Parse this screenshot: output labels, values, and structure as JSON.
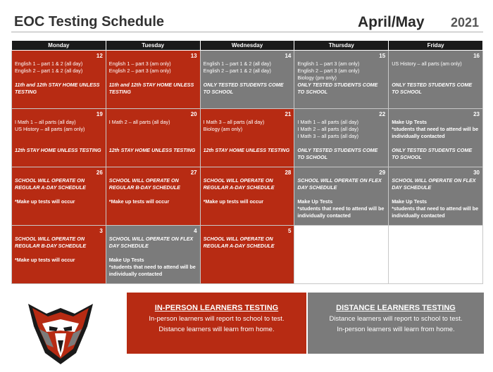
{
  "header": {
    "title": "EOC Testing Schedule",
    "month": "April/May",
    "year": "2021"
  },
  "days": [
    "Monday",
    "Tuesday",
    "Wednesday",
    "Thursday",
    "Friday"
  ],
  "weeks": [
    [
      {
        "num": "12",
        "color": "red",
        "lines": [
          {
            "t": "English 1 – part 1 & 2 (all day)"
          },
          {
            "t": "English 2 – part 1 & 2 (all day)"
          },
          {
            "gap": true
          },
          {
            "t": "11th and 12th STAY HOME UNLESS TESTING",
            "em": true
          }
        ]
      },
      {
        "num": "13",
        "color": "red",
        "lines": [
          {
            "t": "English 1 – part 3 (am only)"
          },
          {
            "t": "English 2 – part 3 (am only)"
          },
          {
            "gap": true
          },
          {
            "t": "11th and 12th STAY HOME UNLESS TESTING",
            "em": true
          }
        ]
      },
      {
        "num": "14",
        "color": "gray",
        "lines": [
          {
            "t": "English 1 – part 1 & 2 (all day)"
          },
          {
            "t": "English 2 – part 1 & 2 (all day)"
          },
          {
            "gap": true
          },
          {
            "t": "ONLY TESTED STUDENTS COME TO SCHOOL",
            "em": true
          }
        ]
      },
      {
        "num": "15",
        "color": "gray",
        "lines": [
          {
            "t": "English 1 – part 3 (am only)"
          },
          {
            "t": "English 2 – part 3 (am only)"
          },
          {
            "t": "Biology (pm only)"
          },
          {
            "t": "ONLY TESTED STUDENTS COME TO SCHOOL",
            "em": true
          }
        ]
      },
      {
        "num": "16",
        "color": "gray",
        "lines": [
          {
            "t": "US History – all parts (am only)"
          },
          {
            "gap": true
          },
          {
            "gap": true
          },
          {
            "t": "ONLY TESTED STUDENTS COME TO SCHOOL",
            "em": true
          }
        ]
      }
    ],
    [
      {
        "num": "19",
        "color": "red",
        "lines": [
          {
            "t": "I Math 1 – all parts (all day)"
          },
          {
            "t": "US History – all parts (am only)"
          },
          {
            "gap": true
          },
          {
            "gap": true
          },
          {
            "t": "12th STAY HOME UNLESS TESTING",
            "em": true
          }
        ]
      },
      {
        "num": "20",
        "color": "red",
        "lines": [
          {
            "t": "I Math 2 – all parts (all day)"
          },
          {
            "gap": true
          },
          {
            "gap": true
          },
          {
            "gap": true
          },
          {
            "t": "12th STAY HOME UNLESS TESTING",
            "em": true
          }
        ]
      },
      {
        "num": "21",
        "color": "red",
        "lines": [
          {
            "t": "I Math 3 – all parts (all day)"
          },
          {
            "t": "Biology (am only)"
          },
          {
            "gap": true
          },
          {
            "gap": true
          },
          {
            "t": "12th STAY HOME UNLESS TESTING",
            "em": true
          }
        ]
      },
      {
        "num": "22",
        "color": "gray",
        "lines": [
          {
            "t": "I Math 1 – all parts (all day)"
          },
          {
            "t": "I Math 2 – all parts (all day)"
          },
          {
            "t": "I Math 3 – all parts (all day)"
          },
          {
            "gap": true
          },
          {
            "t": "ONLY TESTED STUDENTS COME TO SCHOOL",
            "em": true
          }
        ]
      },
      {
        "num": "23",
        "color": "gray",
        "lines": [
          {
            "t": "Make Up Tests",
            "hd": true
          },
          {
            "t": "*students that need to attend will be individually contacted",
            "note": true
          },
          {
            "gap": true
          },
          {
            "t": "ONLY TESTED STUDENTS COME TO SCHOOL",
            "em": true
          }
        ]
      }
    ],
    [
      {
        "num": "26",
        "color": "red",
        "lines": [
          {
            "t": "SCHOOL WILL OPERATE ON REGULAR A-DAY SCHEDULE",
            "em": true
          },
          {
            "gap": true
          },
          {
            "t": "*Make up tests will occur",
            "hd": true
          }
        ]
      },
      {
        "num": "27",
        "color": "red",
        "lines": [
          {
            "t": "SCHOOL WILL OPERATE ON REGULAR B-DAY SCHEDULE",
            "em": true
          },
          {
            "gap": true
          },
          {
            "t": "*Make up tests will occur",
            "hd": true
          }
        ]
      },
      {
        "num": "28",
        "color": "red",
        "lines": [
          {
            "t": "SCHOOL WILL OPERATE ON REGULAR A-DAY SCHEDULE",
            "em": true
          },
          {
            "gap": true
          },
          {
            "t": "*Make up tests will occur",
            "hd": true
          }
        ]
      },
      {
        "num": "29",
        "color": "gray",
        "lines": [
          {
            "t": "SCHOOL WILL OPERATE ON FLEX DAY SCHEDULE",
            "em": true
          },
          {
            "gap": true
          },
          {
            "t": "Make Up Tests",
            "hd": true
          },
          {
            "t": "*students that need to attend will be individually contacted",
            "note": true
          }
        ]
      },
      {
        "num": "30",
        "color": "gray",
        "lines": [
          {
            "t": "SCHOOL WILL OPERATE ON FLEX DAY SCHEDULE",
            "em": true
          },
          {
            "gap": true
          },
          {
            "t": "Make Up Tests",
            "hd": true
          },
          {
            "t": "*students that need to attend will be individually contacted",
            "note": true
          }
        ]
      }
    ],
    [
      {
        "num": "3",
        "color": "red",
        "lines": [
          {
            "t": "SCHOOL WILL OPERATE ON REGULAR B-DAY SCHEDULE",
            "em": true
          },
          {
            "gap": true
          },
          {
            "t": "*Make up tests will occur",
            "hd": true
          }
        ]
      },
      {
        "num": "4",
        "color": "gray",
        "lines": [
          {
            "t": "SCHOOL WILL OPERATE ON FLEX DAY SCHEDULE",
            "em": true
          },
          {
            "gap": true
          },
          {
            "t": "Make Up Tests",
            "hd": true
          },
          {
            "t": "*students that need to attend will be individually contacted",
            "note": true
          }
        ]
      },
      {
        "num": "5",
        "color": "red",
        "lines": [
          {
            "t": "SCHOOL WILL OPERATE ON REGULAR A-DAY SCHEDULE",
            "em": true
          }
        ]
      },
      {
        "num": "",
        "color": "blank",
        "lines": []
      },
      {
        "num": "",
        "color": "blank",
        "lines": []
      }
    ]
  ],
  "legend": {
    "inperson": {
      "heading": "IN-PERSON LEARNERS TESTING",
      "line1": "In-person learners will report to school to test.",
      "line2": "Distance learners will learn from home."
    },
    "distance": {
      "heading": "DISTANCE LEARNERS TESTING",
      "line1": "Distance learners will report to school to test.",
      "line2": "In-person learners will learn from home."
    }
  },
  "colors": {
    "red": "#b72b13",
    "gray": "#7b7b7b"
  },
  "logo": {
    "icon": "redhawk-mascot-icon"
  }
}
